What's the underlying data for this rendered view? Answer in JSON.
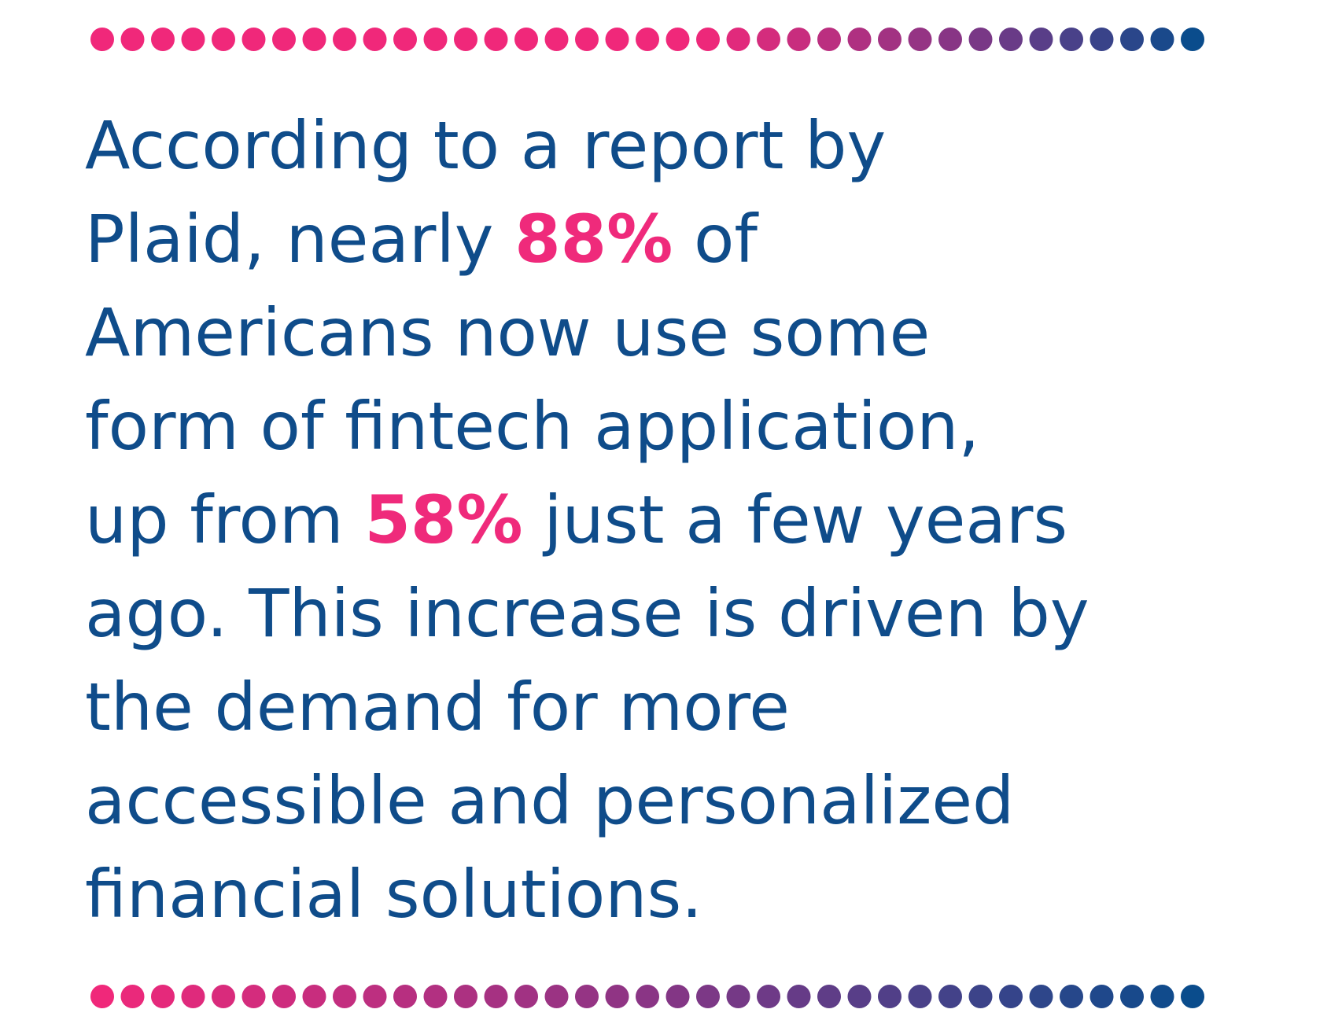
{
  "quote": {
    "text_color": "#0f4c8a",
    "emphasis_color": "#ef2a7b",
    "lines": [
      [
        {
          "text": "According to a report by"
        }
      ],
      [
        {
          "text": "Plaid, nearly "
        },
        {
          "text": "88%",
          "emphasis": true
        },
        {
          "text": " of"
        }
      ],
      [
        {
          "text": "Americans now use some"
        }
      ],
      [
        {
          "text": "form of fintech application,"
        }
      ],
      [
        {
          "text": "up from "
        },
        {
          "text": "58%",
          "emphasis": true
        },
        {
          "text": " just a few years"
        }
      ],
      [
        {
          "text": "ago. This increase is driven by"
        }
      ],
      [
        {
          "text": "the demand for more"
        }
      ],
      [
        {
          "text": "accessible and personalized"
        }
      ],
      [
        {
          "text": "financial solutions."
        }
      ]
    ]
  }
}
